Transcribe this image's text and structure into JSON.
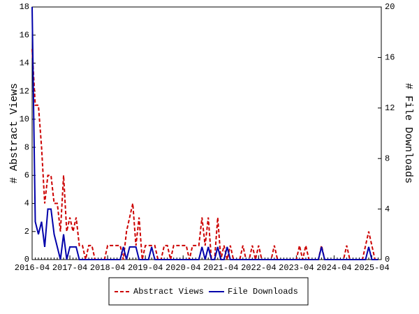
{
  "chart_data": {
    "type": "line",
    "y_label": "# Abstract Views",
    "y2_label": "# File Downloads",
    "x": [
      "2016-04",
      "2016-05",
      "2016-06",
      "2016-07",
      "2016-08",
      "2016-09",
      "2016-10",
      "2016-11",
      "2016-12",
      "2017-01",
      "2017-02",
      "2017-03",
      "2017-04",
      "2017-05",
      "2017-06",
      "2017-07",
      "2017-08",
      "2017-09",
      "2017-10",
      "2017-11",
      "2017-12",
      "2018-01",
      "2018-02",
      "2018-03",
      "2018-04",
      "2018-05",
      "2018-06",
      "2018-07",
      "2018-08",
      "2018-09",
      "2018-10",
      "2018-11",
      "2018-12",
      "2019-01",
      "2019-02",
      "2019-03",
      "2019-04",
      "2019-05",
      "2019-06",
      "2019-07",
      "2019-08",
      "2019-09",
      "2019-10",
      "2019-11",
      "2019-12",
      "2020-01",
      "2020-02",
      "2020-03",
      "2020-04",
      "2020-05",
      "2020-06",
      "2020-07",
      "2020-08",
      "2020-09",
      "2020-10",
      "2020-11",
      "2020-12",
      "2021-01",
      "2021-02",
      "2021-03",
      "2021-04",
      "2021-05",
      "2021-06",
      "2021-07",
      "2021-08",
      "2021-09",
      "2021-10",
      "2021-11",
      "2021-12",
      "2022-01",
      "2022-02",
      "2022-03",
      "2022-04",
      "2022-05",
      "2022-06",
      "2022-07",
      "2022-08",
      "2022-09",
      "2022-10",
      "2022-11",
      "2022-12",
      "2023-01",
      "2023-02",
      "2023-03",
      "2023-04",
      "2023-05",
      "2023-06",
      "2023-07",
      "2023-08",
      "2023-09",
      "2023-10",
      "2023-11",
      "2023-12",
      "2024-01",
      "2024-02",
      "2024-03",
      "2024-04",
      "2024-05",
      "2024-06",
      "2024-07",
      "2024-08",
      "2024-09",
      "2024-10",
      "2024-11",
      "2024-12",
      "2025-01",
      "2025-02",
      "2025-03",
      "2025-04",
      "2025-05",
      "2025-06"
    ],
    "xlim": [
      "2016-04",
      "2025-07"
    ],
    "xticks": [
      "2016-04",
      "2017-04",
      "2018-04",
      "2019-04",
      "2020-04",
      "2021-04",
      "2022-04",
      "2023-04",
      "2024-04",
      "2025-04"
    ],
    "ylim": [
      0,
      18
    ],
    "yticks": [
      0,
      2,
      4,
      6,
      8,
      10,
      12,
      14,
      16,
      18
    ],
    "y2lim": [
      0,
      20
    ],
    "y2ticks": [
      0,
      4,
      8,
      12,
      16,
      20
    ],
    "series": [
      {
        "name": "Abstract Views",
        "color": "#cc0000",
        "dash": true,
        "values": [
          15,
          11,
          11,
          8,
          4,
          6,
          6,
          4,
          4,
          2,
          6,
          2,
          3,
          2,
          3,
          1,
          1,
          0,
          1,
          1,
          0,
          0,
          0,
          0,
          1,
          1,
          1,
          1,
          1,
          0,
          2,
          3,
          4,
          1,
          3,
          0,
          1,
          1,
          1,
          1,
          0,
          0,
          1,
          1,
          0,
          1,
          1,
          1,
          1,
          1,
          0,
          1,
          1,
          1,
          3,
          1,
          3,
          0,
          0,
          3,
          0,
          1,
          0,
          1,
          0,
          0,
          0,
          1,
          0,
          0,
          1,
          0,
          1,
          0,
          0,
          0,
          0,
          1,
          0,
          0,
          0,
          0,
          0,
          0,
          0,
          1,
          0,
          1,
          0,
          0,
          0,
          0,
          1,
          0,
          0,
          0,
          0,
          0,
          0,
          0,
          1,
          0,
          0,
          0,
          0,
          0,
          1,
          2,
          1,
          0,
          0
        ]
      },
      {
        "name": "File Downloads",
        "color": "#0000aa",
        "dash": false,
        "axis": "y2",
        "values": [
          20,
          3,
          2,
          3,
          1,
          4,
          4,
          2,
          1,
          0,
          2,
          0,
          1,
          1,
          1,
          0,
          0,
          0,
          0,
          0,
          0,
          0,
          0,
          0,
          0,
          0,
          0,
          0,
          0,
          1,
          0,
          1,
          1,
          1,
          0,
          0,
          0,
          0,
          1,
          0,
          0,
          0,
          0,
          0,
          0,
          0,
          0,
          0,
          0,
          0,
          0,
          0,
          0,
          0,
          1,
          0,
          1,
          0,
          0,
          1,
          0,
          0,
          1,
          0,
          0,
          0,
          0,
          0,
          0,
          0,
          0,
          0,
          0,
          0,
          0,
          0,
          0,
          0,
          0,
          0,
          0,
          0,
          0,
          0,
          0,
          0,
          0,
          0,
          0,
          0,
          0,
          0,
          1,
          0,
          0,
          0,
          0,
          0,
          0,
          0,
          0,
          0,
          0,
          0,
          0,
          0,
          0,
          1,
          0,
          0,
          0
        ]
      }
    ]
  }
}
